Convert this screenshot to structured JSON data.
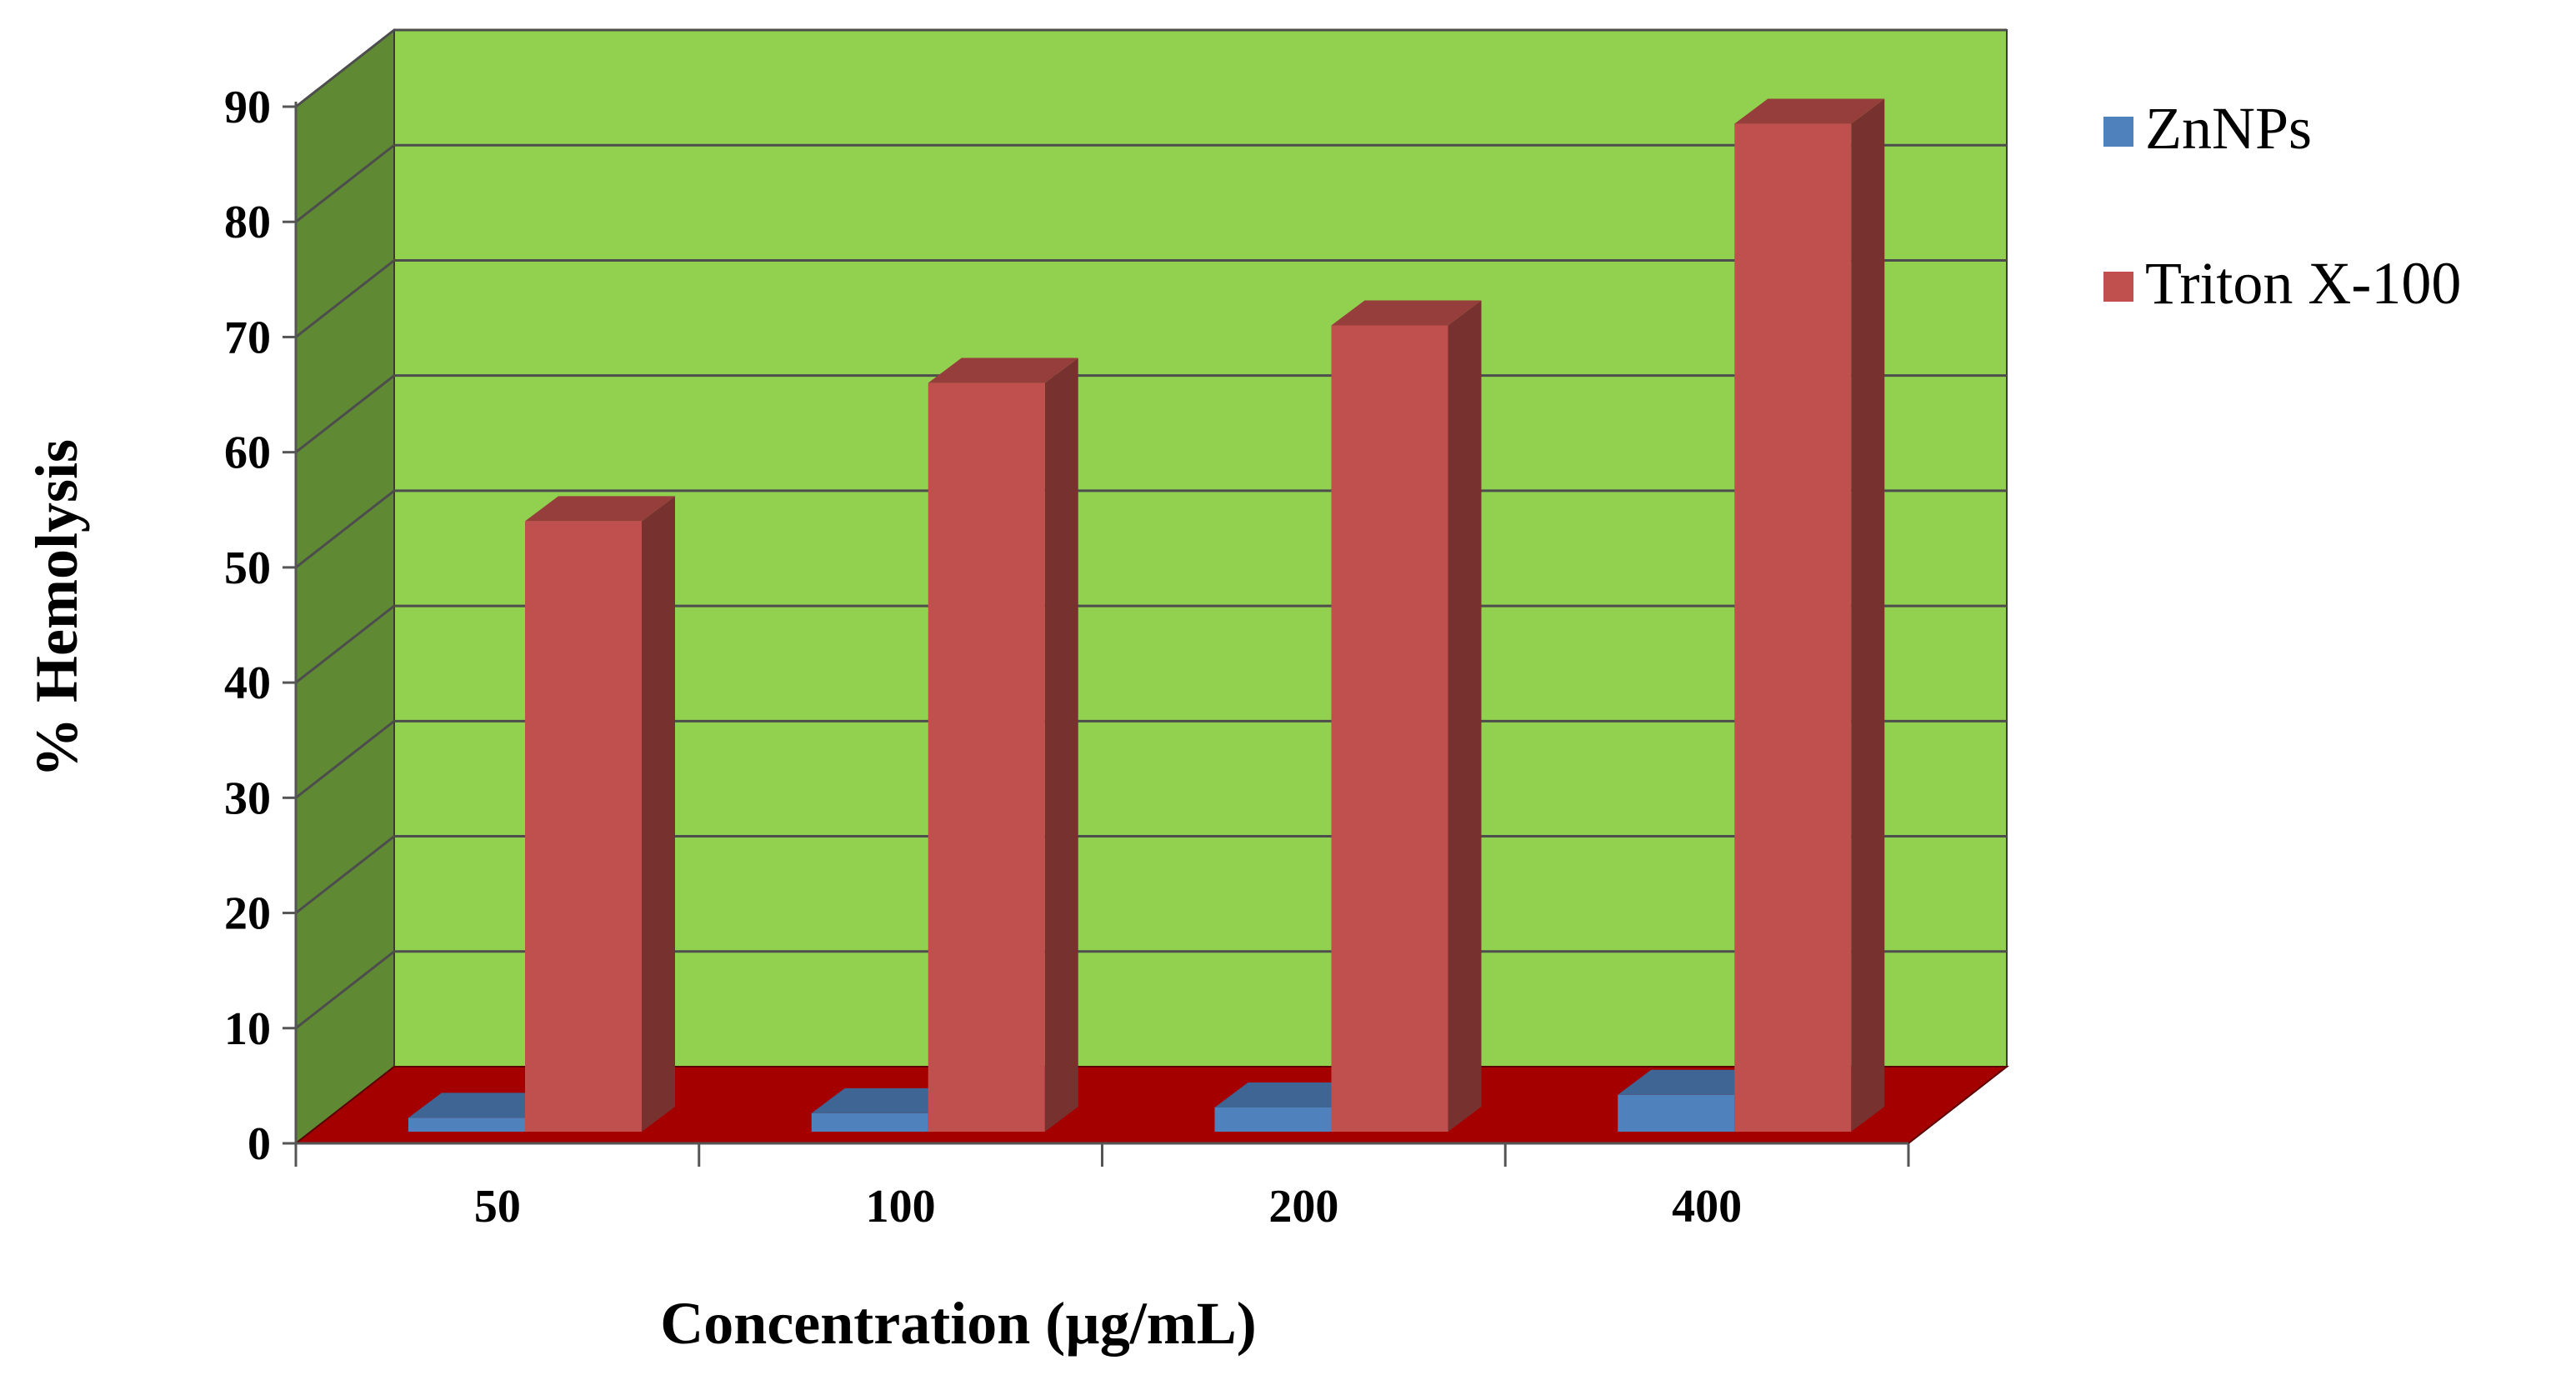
{
  "chart_data": {
    "type": "bar",
    "title": "",
    "xlabel": "Concentration  (µg/mL)",
    "ylabel": "% Hemolysis",
    "categories": [
      "50",
      "100",
      "200",
      "400"
    ],
    "series": [
      {
        "name": "ZnNPs",
        "values": [
          1.2,
          1.6,
          2.1,
          3.2
        ],
        "color": "#4F81BD"
      },
      {
        "name": "Triton X-100",
        "values": [
          53,
          65,
          70,
          87.5
        ],
        "color": "#C0504D"
      }
    ],
    "ylim": [
      0,
      90
    ],
    "yticks": [
      "0",
      "10",
      "20",
      "30",
      "40",
      "50",
      "60",
      "70",
      "80",
      "90"
    ],
    "grid": true,
    "legend": "right",
    "colors": {
      "back_wall": "#92D050",
      "side_wall": "#5F8A33",
      "floor": "#A50000",
      "gridline": "#4D4D4D"
    }
  }
}
